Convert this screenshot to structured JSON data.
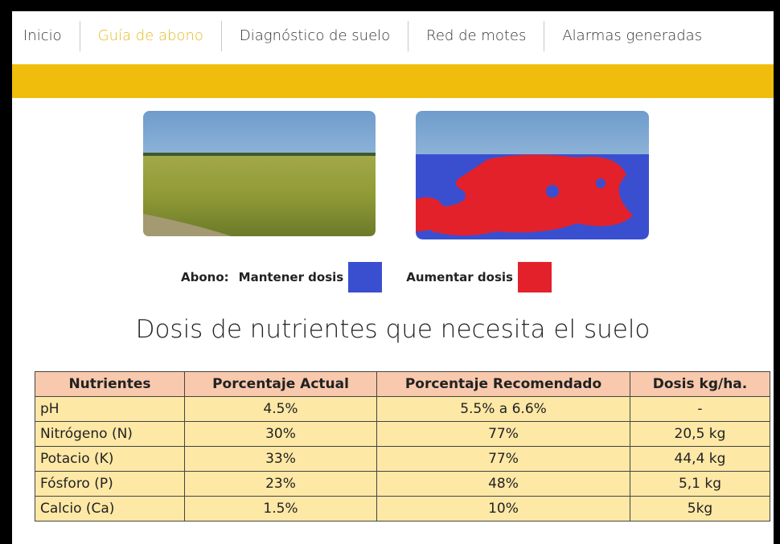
{
  "nav": {
    "items": [
      "Inicio",
      "Guía de abono",
      "Diagnóstico de suelo",
      "Red de motes",
      "Alarmas generadas"
    ]
  },
  "legend": {
    "label": "Abono:",
    "items": [
      "Mantener dosis",
      "Aumentar dosis"
    ]
  },
  "title": "Dosis de nutrientes que necesita el suelo",
  "table": {
    "header": [
      "Nutrientes",
      "Porcentaje Actual",
      "Porcentaje Recomendado",
      "Dosis kg/ha."
    ],
    "rows": [
      [
        "pH",
        "4.5%",
        "5.5% a 6.6%",
        "-"
      ],
      [
        "Nitrógeno (N)",
        "30%",
        "77%",
        "20,5 kg"
      ],
      [
        "Potacio (K)",
        "33%",
        "77%",
        "44,4 kg"
      ],
      [
        "Fósforo (P)",
        "23%",
        "48%",
        "5,1 kg"
      ],
      [
        "Calcio (Ca)",
        "1.5%",
        "10%",
        "5kg"
      ]
    ]
  }
}
